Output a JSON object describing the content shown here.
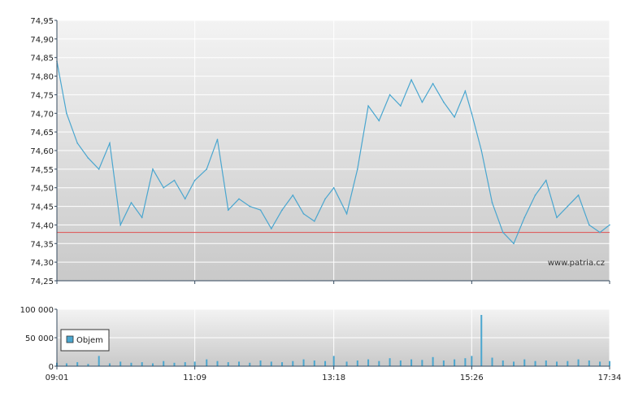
{
  "watermark": "www.patria.cz",
  "colors": {
    "line": "#4aa6cf",
    "reference": "#e05050",
    "volume": "#4aa6cf",
    "grid": "#ffffff",
    "axis": "#34495e"
  },
  "chart_data": [
    {
      "type": "line",
      "name": "price",
      "x_ticks": [
        "09:01",
        "11:09",
        "13:18",
        "15:26",
        "17:34"
      ],
      "xlim": [
        "09:01",
        "17:34"
      ],
      "ylim": [
        74.25,
        74.95
      ],
      "y_ticks": [
        "74,25",
        "74,30",
        "74,35",
        "74,40",
        "74,45",
        "74,50",
        "74,55",
        "74,60",
        "74,65",
        "74,70",
        "74,75",
        "74,80",
        "74,85",
        "74,90",
        "74,95"
      ],
      "reference_line": 74.38,
      "grid": true,
      "x": [
        "09:01",
        "09:10",
        "09:20",
        "09:30",
        "09:40",
        "09:50",
        "10:00",
        "10:10",
        "10:20",
        "10:30",
        "10:40",
        "10:50",
        "11:00",
        "11:09",
        "11:20",
        "11:30",
        "11:40",
        "11:50",
        "12:00",
        "12:10",
        "12:20",
        "12:30",
        "12:40",
        "12:50",
        "13:00",
        "13:10",
        "13:18",
        "13:30",
        "13:40",
        "13:50",
        "14:00",
        "14:10",
        "14:20",
        "14:30",
        "14:40",
        "14:50",
        "15:00",
        "15:10",
        "15:20",
        "15:26",
        "15:35",
        "15:45",
        "15:55",
        "16:05",
        "16:15",
        "16:25",
        "16:35",
        "16:45",
        "16:55",
        "17:05",
        "17:15",
        "17:25",
        "17:34"
      ],
      "values": [
        74.84,
        74.7,
        74.62,
        74.58,
        74.55,
        74.62,
        74.4,
        74.46,
        74.42,
        74.55,
        74.5,
        74.52,
        74.47,
        74.52,
        74.55,
        74.63,
        74.44,
        74.47,
        74.45,
        74.44,
        74.39,
        74.44,
        74.48,
        74.43,
        74.41,
        74.47,
        74.5,
        74.43,
        74.55,
        74.72,
        74.68,
        74.75,
        74.72,
        74.79,
        74.73,
        74.78,
        74.73,
        74.69,
        74.76,
        74.7,
        74.6,
        74.46,
        74.38,
        74.35,
        74.42,
        74.48,
        74.52,
        74.42,
        74.45,
        74.48,
        74.4,
        74.38,
        74.4
      ]
    },
    {
      "type": "bar",
      "name": "volume",
      "legend": [
        "Objem"
      ],
      "legend_position": "left",
      "x_ticks": [
        "09:01",
        "11:09",
        "13:18",
        "15:26",
        "17:34"
      ],
      "ylim": [
        0,
        100000
      ],
      "y_ticks": [
        "0",
        "50 000",
        "100 000"
      ],
      "grid": true,
      "x": [
        "09:01",
        "09:10",
        "09:20",
        "09:30",
        "09:40",
        "09:50",
        "10:00",
        "10:10",
        "10:20",
        "10:30",
        "10:40",
        "10:50",
        "11:00",
        "11:09",
        "11:20",
        "11:30",
        "11:40",
        "11:50",
        "12:00",
        "12:10",
        "12:20",
        "12:30",
        "12:40",
        "12:50",
        "13:00",
        "13:10",
        "13:18",
        "13:30",
        "13:40",
        "13:50",
        "14:00",
        "14:10",
        "14:20",
        "14:30",
        "14:40",
        "14:50",
        "15:00",
        "15:10",
        "15:20",
        "15:26",
        "15:35",
        "15:45",
        "15:55",
        "16:05",
        "16:15",
        "16:25",
        "16:35",
        "16:45",
        "16:55",
        "17:05",
        "17:15",
        "17:25",
        "17:34"
      ],
      "values": [
        6000,
        5000,
        7000,
        4000,
        18000,
        5000,
        8000,
        6000,
        7000,
        5000,
        9000,
        6000,
        7000,
        8000,
        12000,
        9000,
        7000,
        8000,
        6000,
        10000,
        8000,
        7000,
        9000,
        12000,
        10000,
        9000,
        18000,
        8000,
        10000,
        12000,
        9000,
        14000,
        10000,
        12000,
        11000,
        16000,
        10000,
        12000,
        14000,
        18000,
        90000,
        15000,
        10000,
        8000,
        12000,
        9000,
        10000,
        8000,
        9000,
        12000,
        10000,
        8000,
        9000
      ]
    }
  ]
}
